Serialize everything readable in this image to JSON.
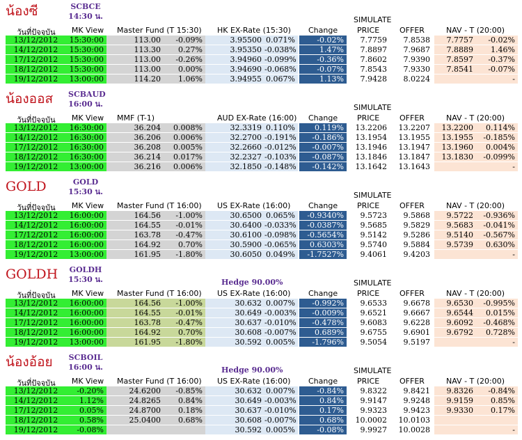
{
  "sections": [
    {
      "name": "น้องซี",
      "code": "SCBCE",
      "time": "14:30 น.",
      "simulate": "SIMULATE",
      "hedge": "",
      "headers": [
        "วันที่ปัจจุบัน",
        "MK View",
        "Master Fund (T 15:30)",
        "",
        "HK EX-Rate (15:30)",
        "",
        "Change",
        "PRICE",
        "OFFER",
        "NAV - T (20:00)",
        ""
      ],
      "rows": [
        [
          "13/12/2012",
          "15:30:00",
          "113.00",
          "-0.09%",
          "3.95500",
          "0.071%",
          "-0.02%",
          "7.7759",
          "7.8538",
          "7.7757",
          "-0.02%"
        ],
        [
          "14/12/2012",
          "15:30:00",
          "113.30",
          "0.27%",
          "3.95350",
          "-0.038%",
          "1.47%",
          "7.8897",
          "7.9687",
          "7.8889",
          "1.46%"
        ],
        [
          "17/12/2012",
          "15:30:00",
          "113.00",
          "-0.26%",
          "3.94960",
          "-0.099%",
          "-0.36%",
          "7.8602",
          "7.9390",
          "7.8597",
          "-0.37%"
        ],
        [
          "18/12/2012",
          "15:30:00",
          "113.00",
          "0.00%",
          "3.94690",
          "-0.068%",
          "-0.07%",
          "7.8543",
          "7.9330",
          "7.8541",
          "-0.07%"
        ],
        [
          "19/12/2012",
          "13:00:00",
          "114.20",
          "1.06%",
          "3.94955",
          "0.067%",
          "1.13%",
          "7.9428",
          "8.0224",
          "",
          "-"
        ]
      ]
    },
    {
      "name": "น้องออส",
      "code": "SCBAUD",
      "time": "16:00 น.",
      "simulate": "SIMULATE",
      "hedge": "",
      "headers": [
        "วันที่ปัจจุบัน",
        "MK View",
        "MMF (T-1)",
        "",
        "AUD EX-Rate (16:00)",
        "",
        "Change",
        "PRICE",
        "OFFER",
        "NAV - T (20:00)",
        ""
      ],
      "rows": [
        [
          "13/12/2012",
          "16:30:00",
          "36.204",
          "0.008%",
          "32.3319",
          "0.110%",
          "0.119%",
          "13.2206",
          "13.2207",
          "13.2200",
          "0.114%"
        ],
        [
          "14/12/2012",
          "16:30:00",
          "36.206",
          "0.006%",
          "32.2700",
          "-0.191%",
          "-0.186%",
          "13.1954",
          "13.1955",
          "13.1955",
          "-0.185%"
        ],
        [
          "17/12/2012",
          "16:30:00",
          "36.208",
          "0.005%",
          "32.2660",
          "-0.012%",
          "-0.007%",
          "13.1946",
          "13.1947",
          "13.1960",
          "0.004%"
        ],
        [
          "18/12/2012",
          "16:30:00",
          "36.214",
          "0.017%",
          "32.2327",
          "-0.103%",
          "-0.087%",
          "13.1846",
          "13.1847",
          "13.1830",
          "-0.099%"
        ],
        [
          "19/12/2012",
          "13:00:00",
          "36.216",
          "0.006%",
          "32.1850",
          "-0.148%",
          "-0.142%",
          "13.1642",
          "13.1643",
          "",
          "-"
        ]
      ]
    },
    {
      "name": "GOLD",
      "code": "GOLD",
      "time": "15:30 น.",
      "simulate": "SIMULATE",
      "hedge": "",
      "headers": [
        "วันที่ปัจจุบัน",
        "MK View",
        "Master Fund (T 16:00)",
        "",
        "US EX-Rate (16:00)",
        "",
        "Change",
        "PRICE",
        "OFFER",
        "NAV - T (20:00)",
        ""
      ],
      "rows": [
        [
          "13/12/2012",
          "16:00:00",
          "164.56",
          "-1.00%",
          "30.6500",
          "0.065%",
          "-0.9340%",
          "9.5723",
          "9.5868",
          "9.5722",
          "-0.936%"
        ],
        [
          "14/12/2012",
          "16:00:00",
          "164.55",
          "-0.01%",
          "30.6400",
          "-0.033%",
          "-0.0387%",
          "9.5685",
          "9.5829",
          "9.5683",
          "-0.041%"
        ],
        [
          "17/12/2012",
          "16:00:00",
          "163.78",
          "-0.47%",
          "30.6100",
          "-0.098%",
          "-0.5654%",
          "9.5142",
          "9.5286",
          "9.5140",
          "-0.567%"
        ],
        [
          "18/12/2012",
          "16:00:00",
          "164.92",
          "0.70%",
          "30.5900",
          "-0.065%",
          "0.6303%",
          "9.5740",
          "9.5884",
          "9.5739",
          "0.630%"
        ],
        [
          "19/12/2012",
          "13:00:00",
          "161.95",
          "-1.80%",
          "30.6050",
          "0.049%",
          "-1.7527%",
          "9.4061",
          "9.4203",
          "",
          "-"
        ]
      ]
    },
    {
      "name": "GOLDH",
      "code": "GOLDH",
      "time": "15:30 น.",
      "simulate": "SIMULATE",
      "hedge": "Hedge 90.00%",
      "headers": [
        "วันที่ปัจจุบัน",
        "MK View",
        "Master Fund (T 16:00)",
        "",
        "US EX-Rate (16:00)",
        "",
        "Change",
        "PRICE",
        "OFFER",
        "NAV - T (20:00)",
        ""
      ],
      "rows": [
        [
          "13/12/2012",
          "16:00:00",
          "164.56",
          "-1.00%",
          "30.632",
          "0.007%",
          "-0.992%",
          "9.6533",
          "9.6678",
          "9.6530",
          "-0.995%"
        ],
        [
          "14/12/2012",
          "16:00:00",
          "164.55",
          "-0.01%",
          "30.649",
          "-0.003%",
          "-0.009%",
          "9.6521",
          "9.6667",
          "9.6544",
          "0.015%"
        ],
        [
          "17/12/2012",
          "16:00:00",
          "163.78",
          "-0.47%",
          "30.637",
          "-0.010%",
          "-0.478%",
          "9.6083",
          "9.6228",
          "9.6092",
          "-0.468%"
        ],
        [
          "18/12/2012",
          "16:00:00",
          "164.92",
          "0.70%",
          "30.608",
          "-0.007%",
          "0.689%",
          "9.6755",
          "9.6901",
          "9.6792",
          "0.728%"
        ],
        [
          "19/12/2012",
          "13:00:00",
          "161.95",
          "-1.80%",
          "30.592",
          "0.005%",
          "-1.796%",
          "9.5054",
          "9.5197",
          "",
          "-"
        ]
      ]
    },
    {
      "name": "น้องอ้อย",
      "code": "SCBOIL",
      "time": "16:00 น.",
      "simulate": "SIMULATE",
      "hedge": "Hedge 90.00%",
      "headers": [
        "วันที่ปัจจุบัน",
        "MK View",
        "Master Fund (T 16:00)",
        "",
        "US EX-Rate (16:00)",
        "",
        "Change",
        "PRICE",
        "OFFER",
        "NAV - T (20:00)",
        ""
      ],
      "rows": [
        [
          "13/12/2012",
          "-0.20%",
          "24.6200",
          "-0.85%",
          "30.632",
          "0.007%",
          "-0.84%",
          "9.8322",
          "9.8421",
          "9.8326",
          "-0.84%"
        ],
        [
          "14/12/2012",
          "1.12%",
          "24.8265",
          "0.84%",
          "30.649",
          "-0.003%",
          "0.84%",
          "9.9147",
          "9.9248",
          "9.9159",
          "0.85%"
        ],
        [
          "17/12/2012",
          "0.05%",
          "24.8700",
          "0.18%",
          "30.637",
          "-0.010%",
          "0.17%",
          "9.9323",
          "9.9423",
          "9.9330",
          "0.17%"
        ],
        [
          "18/12/2012",
          "0.58%",
          "25.0400",
          "0.68%",
          "30.608",
          "-0.007%",
          "0.68%",
          "10.0002",
          "10.0103",
          "",
          ""
        ],
        [
          "19/12/2012",
          "-0.08%",
          "",
          "",
          "30.592",
          "0.005%",
          "-0.08%",
          "9.9927",
          "10.0028",
          "",
          "-"
        ]
      ]
    }
  ]
}
